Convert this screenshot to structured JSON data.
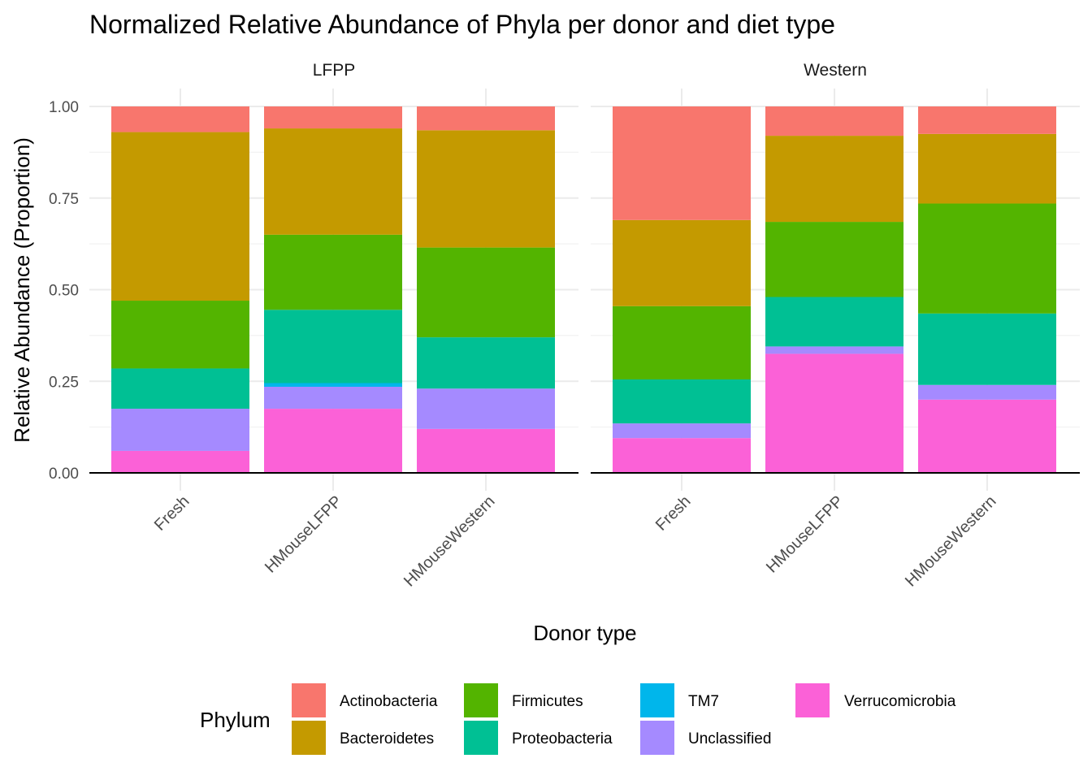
{
  "chart_data": {
    "type": "bar",
    "stacked": true,
    "title": "Normalized Relative Abundance of Phyla per donor and diet type",
    "xlabel": "Donor type",
    "ylabel": "Relative Abundance (Proportion)",
    "ylim": [
      0,
      1
    ],
    "yticks": [
      "0.00",
      "0.25",
      "0.50",
      "0.75",
      "1.00"
    ],
    "grid": true,
    "legend": {
      "title": "Phylum",
      "position": "bottom"
    },
    "categories": [
      "Fresh",
      "HMouseLFPP",
      "HMouseWestern"
    ],
    "facets": [
      {
        "label": "LFPP",
        "series": [
          {
            "name": "Verrucomicrobia",
            "values": [
              0.06,
              0.175,
              0.12
            ]
          },
          {
            "name": "Unclassified",
            "values": [
              0.115,
              0.06,
              0.11
            ]
          },
          {
            "name": "TM7",
            "values": [
              0.0,
              0.01,
              0.0
            ]
          },
          {
            "name": "Proteobacteria",
            "values": [
              0.11,
              0.2,
              0.14
            ]
          },
          {
            "name": "Firmicutes",
            "values": [
              0.185,
              0.205,
              0.245
            ]
          },
          {
            "name": "Bacteroidetes",
            "values": [
              0.46,
              0.29,
              0.32
            ]
          },
          {
            "name": "Actinobacteria",
            "values": [
              0.07,
              0.06,
              0.065
            ]
          }
        ]
      },
      {
        "label": "Western",
        "series": [
          {
            "name": "Verrucomicrobia",
            "values": [
              0.095,
              0.325,
              0.2
            ]
          },
          {
            "name": "Unclassified",
            "values": [
              0.04,
              0.02,
              0.04
            ]
          },
          {
            "name": "TM7",
            "values": [
              0.0,
              0.0,
              0.0
            ]
          },
          {
            "name": "Proteobacteria",
            "values": [
              0.12,
              0.135,
              0.195
            ]
          },
          {
            "name": "Firmicutes",
            "values": [
              0.2,
              0.205,
              0.3
            ]
          },
          {
            "name": "Bacteroidetes",
            "values": [
              0.235,
              0.235,
              0.19
            ]
          },
          {
            "name": "Actinobacteria",
            "values": [
              0.31,
              0.08,
              0.075
            ]
          }
        ]
      }
    ],
    "colors": {
      "Actinobacteria": "#F8766D",
      "Bacteroidetes": "#C49A00",
      "Firmicutes": "#53B400",
      "Proteobacteria": "#00C094",
      "TM7": "#00B6EB",
      "Unclassified": "#A58AFF",
      "Verrucomicrobia": "#FB61D7"
    },
    "legend_order": [
      "Actinobacteria",
      "Bacteroidetes",
      "Firmicutes",
      "Proteobacteria",
      "TM7",
      "Unclassified",
      "Verrucomicrobia"
    ]
  }
}
